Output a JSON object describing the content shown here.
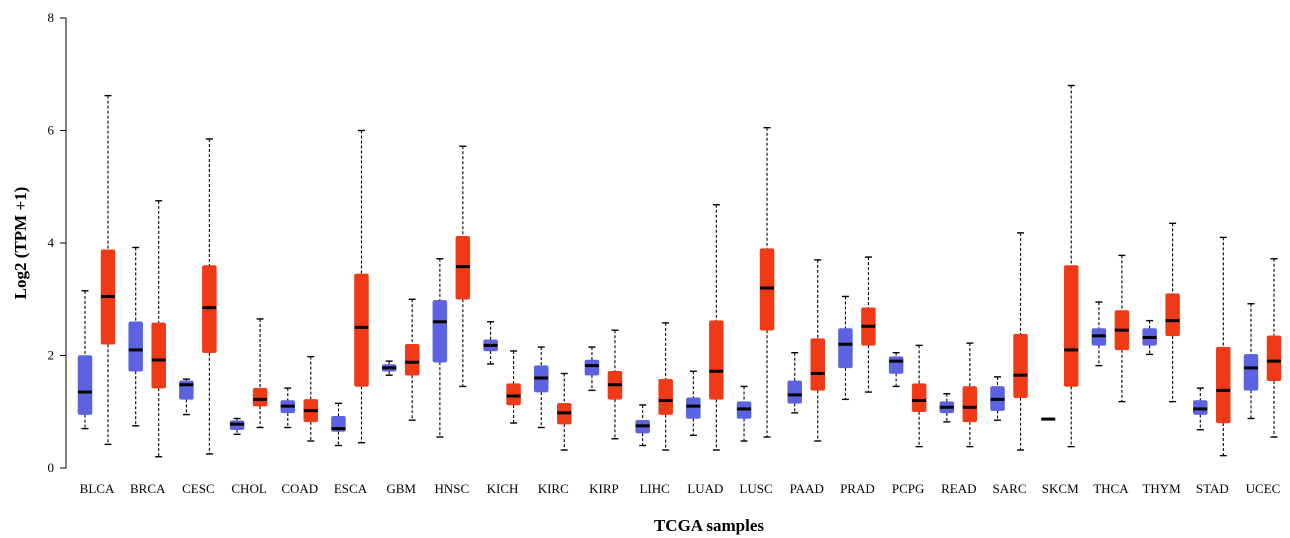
{
  "chart_data": {
    "type": "boxplot",
    "title": "",
    "xlabel": "TCGA samples",
    "ylabel": "Log2 (TPM +1)",
    "ylim": [
      0,
      8
    ],
    "yticks": [
      0,
      2,
      4,
      6,
      8
    ],
    "grid": false,
    "legend": "none",
    "series_colors": {
      "normal": "#5b63e0",
      "tumor": "#f03a17"
    },
    "categories": [
      "BLCA",
      "BRCA",
      "CESC",
      "CHOL",
      "COAD",
      "ESCA",
      "GBM",
      "HNSC",
      "KICH",
      "KIRC",
      "KIRP",
      "LIHC",
      "LUAD",
      "LUSC",
      "PAAD",
      "PRAD",
      "PCPG",
      "READ",
      "SARC",
      "SKCM",
      "THCA",
      "THYM",
      "STAD",
      "UCEC"
    ],
    "groups": [
      {
        "category": "BLCA",
        "normal": {
          "min": 0.7,
          "q1": 0.95,
          "median": 1.35,
          "q3": 2.0,
          "max": 3.15
        },
        "tumor": {
          "min": 0.42,
          "q1": 2.2,
          "median": 3.05,
          "q3": 3.88,
          "max": 6.62
        }
      },
      {
        "category": "BRCA",
        "normal": {
          "min": 0.75,
          "q1": 1.72,
          "median": 2.1,
          "q3": 2.6,
          "max": 3.92
        },
        "tumor": {
          "min": 0.2,
          "q1": 1.42,
          "median": 1.92,
          "q3": 2.58,
          "max": 4.75
        }
      },
      {
        "category": "CESC",
        "normal": {
          "min": 0.95,
          "q1": 1.22,
          "median": 1.48,
          "q3": 1.55,
          "max": 1.58
        },
        "tumor": {
          "min": 0.25,
          "q1": 2.05,
          "median": 2.85,
          "q3": 3.6,
          "max": 5.85
        }
      },
      {
        "category": "CHOL",
        "normal": {
          "min": 0.6,
          "q1": 0.68,
          "median": 0.78,
          "q3": 0.84,
          "max": 0.88
        },
        "tumor": {
          "min": 0.72,
          "q1": 1.1,
          "median": 1.22,
          "q3": 1.42,
          "max": 2.65
        }
      },
      {
        "category": "COAD",
        "normal": {
          "min": 0.72,
          "q1": 0.98,
          "median": 1.1,
          "q3": 1.2,
          "max": 1.42
        },
        "tumor": {
          "min": 0.48,
          "q1": 0.82,
          "median": 1.02,
          "q3": 1.22,
          "max": 1.98
        }
      },
      {
        "category": "ESCA",
        "normal": {
          "min": 0.4,
          "q1": 0.65,
          "median": 0.7,
          "q3": 0.92,
          "max": 1.15
        },
        "tumor": {
          "min": 0.45,
          "q1": 1.45,
          "median": 2.5,
          "q3": 3.45,
          "max": 6.0
        }
      },
      {
        "category": "GBM",
        "normal": {
          "min": 1.65,
          "q1": 1.72,
          "median": 1.78,
          "q3": 1.84,
          "max": 1.9
        },
        "tumor": {
          "min": 0.85,
          "q1": 1.65,
          "median": 1.88,
          "q3": 2.2,
          "max": 3.0
        }
      },
      {
        "category": "HNSC",
        "normal": {
          "min": 0.55,
          "q1": 1.88,
          "median": 2.6,
          "q3": 2.98,
          "max": 3.72
        },
        "tumor": {
          "min": 1.45,
          "q1": 3.0,
          "median": 3.58,
          "q3": 4.12,
          "max": 5.72
        }
      },
      {
        "category": "KICH",
        "normal": {
          "min": 1.85,
          "q1": 2.08,
          "median": 2.18,
          "q3": 2.28,
          "max": 2.6
        },
        "tumor": {
          "min": 0.8,
          "q1": 1.12,
          "median": 1.28,
          "q3": 1.5,
          "max": 2.08
        }
      },
      {
        "category": "KIRC",
        "normal": {
          "min": 0.72,
          "q1": 1.35,
          "median": 1.6,
          "q3": 1.82,
          "max": 2.15
        },
        "tumor": {
          "min": 0.32,
          "q1": 0.78,
          "median": 0.98,
          "q3": 1.15,
          "max": 1.68
        }
      },
      {
        "category": "KIRP",
        "normal": {
          "min": 1.38,
          "q1": 1.65,
          "median": 1.82,
          "q3": 1.92,
          "max": 2.15
        },
        "tumor": {
          "min": 0.52,
          "q1": 1.22,
          "median": 1.48,
          "q3": 1.72,
          "max": 2.45
        }
      },
      {
        "category": "LIHC",
        "normal": {
          "min": 0.4,
          "q1": 0.62,
          "median": 0.75,
          "q3": 0.85,
          "max": 1.12
        },
        "tumor": {
          "min": 0.32,
          "q1": 0.95,
          "median": 1.2,
          "q3": 1.58,
          "max": 2.58
        }
      },
      {
        "category": "LUAD",
        "normal": {
          "min": 0.58,
          "q1": 0.88,
          "median": 1.1,
          "q3": 1.25,
          "max": 1.72
        },
        "tumor": {
          "min": 0.32,
          "q1": 1.22,
          "median": 1.72,
          "q3": 2.62,
          "max": 4.68
        }
      },
      {
        "category": "LUSC",
        "normal": {
          "min": 0.48,
          "q1": 0.88,
          "median": 1.05,
          "q3": 1.18,
          "max": 1.45
        },
        "tumor": {
          "min": 0.55,
          "q1": 2.45,
          "median": 3.2,
          "q3": 3.9,
          "max": 6.05
        }
      },
      {
        "category": "PAAD",
        "normal": {
          "min": 0.98,
          "q1": 1.15,
          "median": 1.3,
          "q3": 1.55,
          "max": 2.05
        },
        "tumor": {
          "min": 0.48,
          "q1": 1.38,
          "median": 1.68,
          "q3": 2.3,
          "max": 3.7
        }
      },
      {
        "category": "PRAD",
        "normal": {
          "min": 1.22,
          "q1": 1.78,
          "median": 2.2,
          "q3": 2.48,
          "max": 3.05
        },
        "tumor": {
          "min": 1.35,
          "q1": 2.18,
          "median": 2.52,
          "q3": 2.85,
          "max": 3.75
        }
      },
      {
        "category": "PCPG",
        "normal": {
          "min": 1.45,
          "q1": 1.68,
          "median": 1.9,
          "q3": 1.98,
          "max": 2.05
        },
        "tumor": {
          "min": 0.38,
          "q1": 1.0,
          "median": 1.2,
          "q3": 1.5,
          "max": 2.18
        }
      },
      {
        "category": "READ",
        "normal": {
          "min": 0.82,
          "q1": 0.98,
          "median": 1.08,
          "q3": 1.18,
          "max": 1.32
        },
        "tumor": {
          "min": 0.38,
          "q1": 0.82,
          "median": 1.08,
          "q3": 1.45,
          "max": 2.22
        }
      },
      {
        "category": "SARC",
        "normal": {
          "min": 0.85,
          "q1": 1.02,
          "median": 1.22,
          "q3": 1.45,
          "max": 1.62
        },
        "tumor": {
          "min": 0.32,
          "q1": 1.25,
          "median": 1.65,
          "q3": 2.38,
          "max": 4.18
        }
      },
      {
        "category": "SKCM",
        "normal": {
          "min": 0.86,
          "q1": 0.86,
          "median": 0.87,
          "q3": 0.88,
          "max": 0.88
        },
        "tumor": {
          "min": 0.38,
          "q1": 1.45,
          "median": 2.1,
          "q3": 3.6,
          "max": 6.8
        }
      },
      {
        "category": "THCA",
        "normal": {
          "min": 1.82,
          "q1": 2.18,
          "median": 2.35,
          "q3": 2.48,
          "max": 2.95
        },
        "tumor": {
          "min": 1.18,
          "q1": 2.1,
          "median": 2.45,
          "q3": 2.8,
          "max": 3.78
        }
      },
      {
        "category": "THYM",
        "normal": {
          "min": 2.02,
          "q1": 2.18,
          "median": 2.32,
          "q3": 2.48,
          "max": 2.62
        },
        "tumor": {
          "min": 1.18,
          "q1": 2.35,
          "median": 2.62,
          "q3": 3.1,
          "max": 4.35
        }
      },
      {
        "category": "STAD",
        "normal": {
          "min": 0.68,
          "q1": 0.95,
          "median": 1.05,
          "q3": 1.2,
          "max": 1.42
        },
        "tumor": {
          "min": 0.22,
          "q1": 0.8,
          "median": 1.38,
          "q3": 2.15,
          "max": 4.1
        }
      },
      {
        "category": "UCEC",
        "normal": {
          "min": 0.88,
          "q1": 1.38,
          "median": 1.78,
          "q3": 2.02,
          "max": 2.92
        },
        "tumor": {
          "min": 0.55,
          "q1": 1.55,
          "median": 1.9,
          "q3": 2.35,
          "max": 3.72
        }
      }
    ]
  }
}
